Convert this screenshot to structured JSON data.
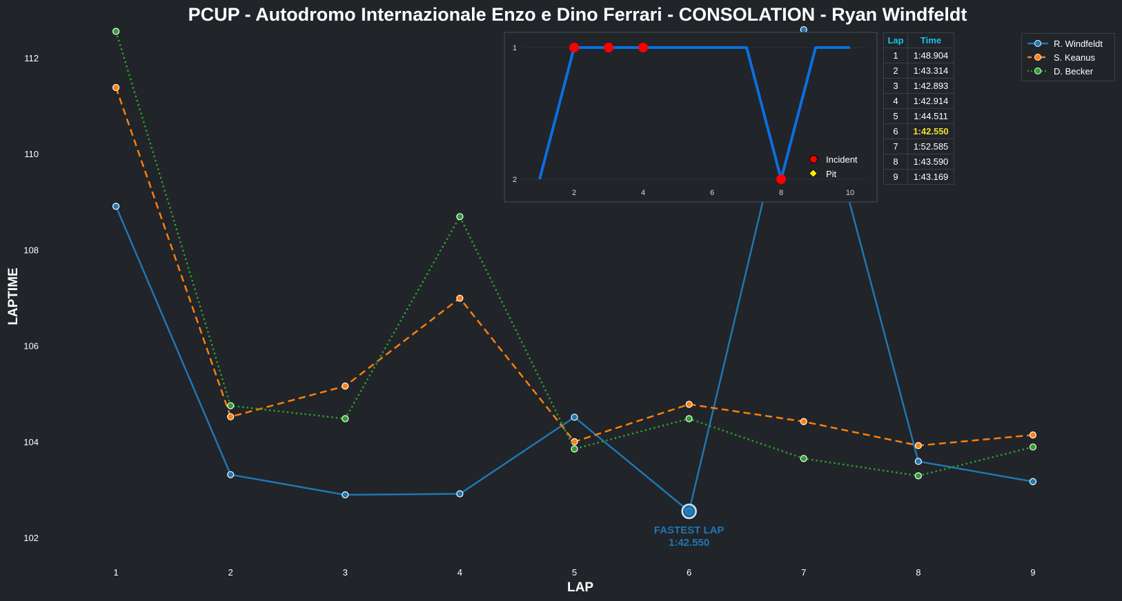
{
  "title": "PCUP - Autodromo Internazionale Enzo e Dino Ferrari - CONSOLATION - Ryan Windfeldt",
  "chart_data": [
    {
      "type": "line",
      "xlabel": "LAP",
      "ylabel": "LAPTIME",
      "x": [
        1,
        2,
        3,
        4,
        5,
        6,
        7,
        8,
        9
      ],
      "xlim": [
        0.5,
        9.5
      ],
      "ylim": [
        101.5,
        112.6
      ],
      "yticks": [
        102,
        104,
        106,
        108,
        110,
        112
      ],
      "grid": false,
      "legend_position": "top-right",
      "series": [
        {
          "name": "R. Windfeldt",
          "color": "#1f77b4",
          "style": "solid",
          "values": [
            108.904,
            103.314,
            102.893,
            102.914,
            104.511,
            102.55,
            112.585,
            103.59,
            103.169
          ]
        },
        {
          "name": "S. Keanus",
          "color": "#ff7f0e",
          "style": "dashed",
          "values": [
            111.38,
            104.52,
            105.16,
            106.99,
            104.0,
            104.78,
            104.42,
            103.92,
            104.14
          ]
        },
        {
          "name": "D. Becker",
          "color": "#2ca02c",
          "style": "dotted",
          "values": [
            112.55,
            104.75,
            104.48,
            108.69,
            103.85,
            104.48,
            103.65,
            103.29,
            103.89
          ]
        }
      ],
      "annotation": {
        "x": 6,
        "y": 102.55,
        "line1": "FASTEST LAP",
        "line2": "1:42.550"
      }
    },
    {
      "type": "line",
      "description_role": "position inset",
      "x": [
        1,
        2,
        3,
        4,
        5,
        6,
        7,
        8,
        9,
        10
      ],
      "values": [
        2,
        1,
        1,
        1,
        1,
        1,
        1,
        2,
        1,
        1
      ],
      "color": "#0a6fe0",
      "xticks": [
        2,
        4,
        6,
        8,
        10
      ],
      "yticks": [
        1,
        2
      ],
      "xlim": [
        0.5,
        10.5
      ],
      "ylim_inverted": [
        2,
        1
      ],
      "incidents": [
        2,
        3,
        4,
        8
      ],
      "pits": [],
      "legend": {
        "incident": "Incident",
        "pit": "Pit"
      }
    }
  ],
  "lap_table": {
    "headers": [
      "Lap",
      "Time"
    ],
    "rows": [
      [
        "1",
        "1:48.904"
      ],
      [
        "2",
        "1:43.314"
      ],
      [
        "3",
        "1:42.893"
      ],
      [
        "4",
        "1:42.914"
      ],
      [
        "5",
        "1:44.511"
      ],
      [
        "6",
        "1:42.550"
      ],
      [
        "7",
        "1:52.585"
      ],
      [
        "8",
        "1:43.590"
      ],
      [
        "9",
        "1:43.169"
      ]
    ],
    "best_row": 5
  }
}
